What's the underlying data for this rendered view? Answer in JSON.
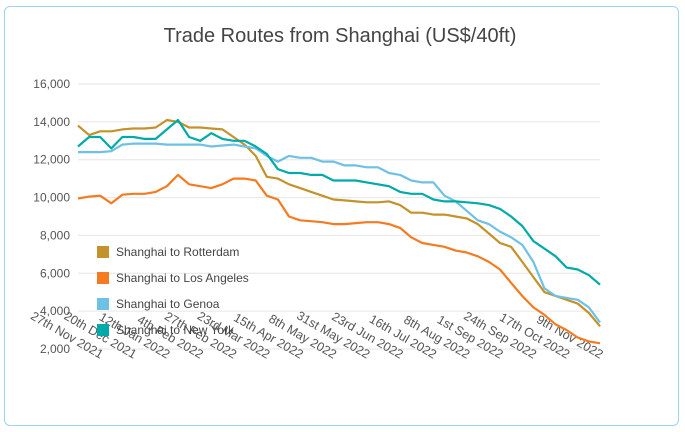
{
  "chart_data": {
    "type": "line",
    "title": "Trade Routes from Shanghai (US$/40ft)",
    "categories": [
      null,
      null,
      "27th Nov 2021",
      null,
      null,
      "20th Dec 2021",
      null,
      null,
      "12th Jan 2022",
      null,
      null,
      "4th Feb 2022",
      null,
      null,
      "27th Feb 2022",
      null,
      null,
      "23rd Mar 2022",
      null,
      null,
      "15th Apr 2022",
      null,
      null,
      "8th May 2022",
      null,
      null,
      "31st May 2022",
      null,
      null,
      "23rd Jun 2022",
      null,
      null,
      "16th Jul 2022",
      null,
      null,
      "8th Aug 2022",
      null,
      null,
      "1st Sep 2022",
      null,
      null,
      "24th Sep 2022",
      null,
      null,
      "17th Oct 2022",
      null,
      null,
      "9th Nov 2022"
    ],
    "series": [
      {
        "name": "Shanghai to Rotterdam",
        "color": "#c4922a",
        "values": [
          13800,
          13300,
          13500,
          13500,
          13600,
          13650,
          13650,
          13700,
          14100,
          14000,
          13700,
          13700,
          13650,
          13600,
          13200,
          12800,
          12200,
          11100,
          11000,
          10700,
          10500,
          10300,
          10100,
          9900,
          9850,
          9800,
          9750,
          9750,
          9800,
          9600,
          9200,
          9200,
          9100,
          9100,
          9000,
          8900,
          8600,
          8100,
          7600,
          7400,
          6600,
          5800,
          5000,
          4800,
          4600,
          4400,
          3900,
          3200
        ]
      },
      {
        "name": "Shanghai to Los Angeles",
        "color": "#f47b20",
        "values": [
          9950,
          10050,
          10100,
          9700,
          10150,
          10200,
          10200,
          10300,
          10600,
          11200,
          10700,
          10600,
          10500,
          10700,
          11000,
          11000,
          10900,
          10100,
          9900,
          9000,
          8800,
          8750,
          8700,
          8600,
          8600,
          8650,
          8700,
          8700,
          8600,
          8400,
          7900,
          7600,
          7500,
          7400,
          7200,
          7100,
          6900,
          6600,
          6200,
          5500,
          4800,
          4200,
          3800,
          3300,
          3000,
          2600,
          2400,
          2300
        ]
      },
      {
        "name": "Shanghai to Genoa",
        "color": "#6ec1e4",
        "values": [
          12400,
          12400,
          12400,
          12450,
          12800,
          12850,
          12850,
          12850,
          12800,
          12800,
          12800,
          12800,
          12700,
          12750,
          12800,
          12700,
          12600,
          12200,
          11900,
          12200,
          12100,
          12100,
          11900,
          11900,
          11700,
          11700,
          11600,
          11600,
          11300,
          11200,
          10900,
          10800,
          10800,
          10100,
          9800,
          9300,
          8800,
          8600,
          8200,
          7900,
          7500,
          6600,
          5200,
          4800,
          4700,
          4600,
          4200,
          3400
        ]
      },
      {
        "name": "Shanghai to New York",
        "color": "#00aaa8",
        "values": [
          12700,
          13200,
          13200,
          12600,
          13200,
          13200,
          13100,
          13100,
          13600,
          14100,
          13200,
          13000,
          13400,
          13100,
          13000,
          13000,
          12700,
          12300,
          11500,
          11300,
          11300,
          11200,
          11200,
          10900,
          10900,
          10900,
          10800,
          10700,
          10600,
          10300,
          10200,
          10200,
          9900,
          9800,
          9800,
          9750,
          9700,
          9600,
          9400,
          9000,
          8500,
          7700,
          7300,
          6900,
          6300,
          6200,
          5900,
          5400
        ]
      }
    ],
    "ylim": [
      2000,
      16000
    ],
    "yticks": [
      {
        "value": 2000,
        "label": "2,000"
      },
      {
        "value": 4000,
        "label": "4,000"
      },
      {
        "value": 6000,
        "label": "6,000"
      },
      {
        "value": 8000,
        "label": "8,000"
      },
      {
        "value": 10000,
        "label": "10,000"
      },
      {
        "value": 12000,
        "label": "12,000"
      },
      {
        "value": 14000,
        "label": "14,000"
      },
      {
        "value": 16000,
        "label": "16,000"
      }
    ],
    "grid": true
  }
}
